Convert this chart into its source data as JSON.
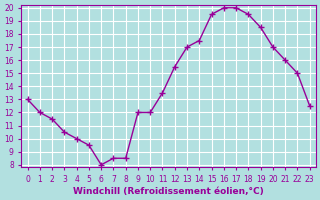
{
  "x": [
    0,
    1,
    2,
    3,
    4,
    5,
    6,
    7,
    8,
    9,
    10,
    11,
    12,
    13,
    14,
    15,
    16,
    17,
    18,
    19,
    20,
    21,
    22,
    23
  ],
  "y": [
    13,
    12,
    11.5,
    10.5,
    10,
    9.5,
    8,
    8.5,
    8.5,
    12,
    12,
    13.5,
    15.5,
    17,
    17.5,
    19.5,
    20,
    20,
    19.5,
    18.5,
    17,
    16,
    15,
    12.5
  ],
  "line_color": "#990099",
  "marker": "+",
  "bg_color": "#b2e0e0",
  "grid_color": "#ffffff",
  "xlabel": "Windchill (Refroidissement éolien,°C)",
  "xlabel_color": "#990099",
  "tick_color": "#990099",
  "ylim": [
    8,
    20
  ],
  "xlim": [
    -0.5,
    23.5
  ],
  "yticks": [
    8,
    9,
    10,
    11,
    12,
    13,
    14,
    15,
    16,
    17,
    18,
    19,
    20
  ],
  "xticks": [
    0,
    1,
    2,
    3,
    4,
    5,
    6,
    7,
    8,
    9,
    10,
    11,
    12,
    13,
    14,
    15,
    16,
    17,
    18,
    19,
    20,
    21,
    22,
    23
  ],
  "tick_fontsize": 5.5,
  "xlabel_fontsize": 6.5,
  "linewidth": 1.0,
  "markersize": 4
}
